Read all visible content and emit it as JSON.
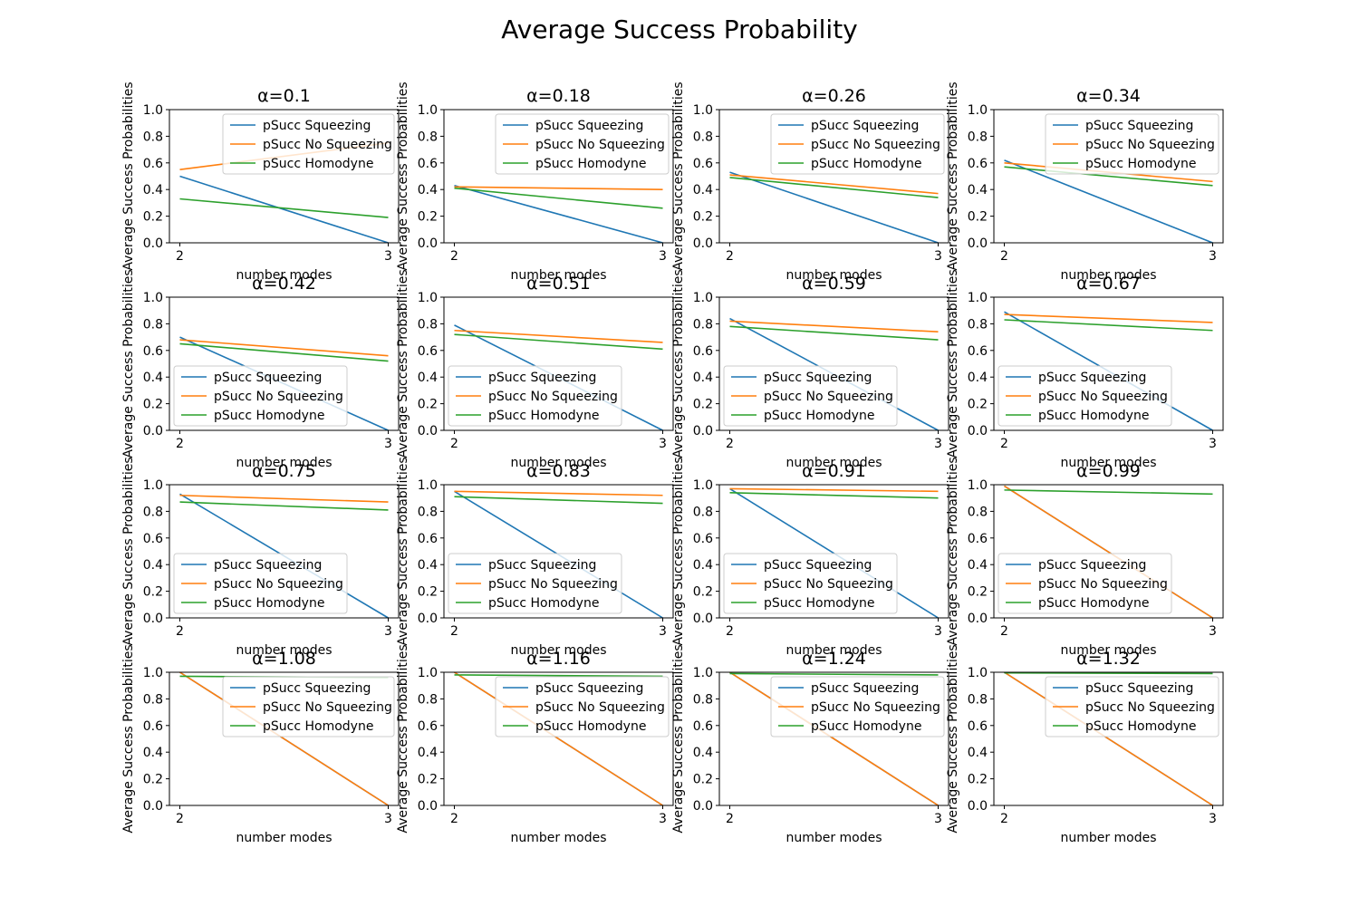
{
  "figure": {
    "title": "Average Success Probability"
  },
  "chart_data": {
    "type": "line",
    "layout": "4x4 grid of subplots",
    "title": "Average Success Probability",
    "xlabel": "number modes",
    "ylabel": "Average Success Probabilities",
    "x": [
      2,
      3
    ],
    "x_ticks": [
      "2",
      "3"
    ],
    "ylim": [
      0,
      1
    ],
    "y_ticks": [
      "0.0",
      "0.2",
      "0.4",
      "0.6",
      "0.8",
      "1.0"
    ],
    "series_styles": [
      {
        "name": "pSucc Squeezing",
        "color": "#1f77b4"
      },
      {
        "name": "pSucc No Squeezing",
        "color": "#ff7f0e"
      },
      {
        "name": "pSucc Homodyne",
        "color": "#2ca02c"
      }
    ],
    "subplots": [
      {
        "title": "α=0.1",
        "legend": "upper-right",
        "series": [
          {
            "name": "pSucc Squeezing",
            "values": [
              0.5,
              0.0
            ]
          },
          {
            "name": "pSucc No Squeezing",
            "values": [
              0.55,
              0.75
            ]
          },
          {
            "name": "pSucc Homodyne",
            "values": [
              0.33,
              0.19
            ]
          }
        ]
      },
      {
        "title": "α=0.18",
        "legend": "upper-right",
        "series": [
          {
            "name": "pSucc Squeezing",
            "values": [
              0.43,
              0.0
            ]
          },
          {
            "name": "pSucc No Squeezing",
            "values": [
              0.42,
              0.4
            ]
          },
          {
            "name": "pSucc Homodyne",
            "values": [
              0.41,
              0.26
            ]
          }
        ]
      },
      {
        "title": "α=0.26",
        "legend": "upper-right",
        "series": [
          {
            "name": "pSucc Squeezing",
            "values": [
              0.53,
              0.0
            ]
          },
          {
            "name": "pSucc No Squeezing",
            "values": [
              0.51,
              0.37
            ]
          },
          {
            "name": "pSucc Homodyne",
            "values": [
              0.49,
              0.34
            ]
          }
        ]
      },
      {
        "title": "α=0.34",
        "legend": "upper-right",
        "series": [
          {
            "name": "pSucc Squeezing",
            "values": [
              0.62,
              0.0
            ]
          },
          {
            "name": "pSucc No Squeezing",
            "values": [
              0.6,
              0.46
            ]
          },
          {
            "name": "pSucc Homodyne",
            "values": [
              0.57,
              0.43
            ]
          }
        ]
      },
      {
        "title": "α=0.42",
        "legend": "lower-left",
        "series": [
          {
            "name": "pSucc Squeezing",
            "values": [
              0.7,
              0.0
            ]
          },
          {
            "name": "pSucc No Squeezing",
            "values": [
              0.68,
              0.56
            ]
          },
          {
            "name": "pSucc Homodyne",
            "values": [
              0.65,
              0.52
            ]
          }
        ]
      },
      {
        "title": "α=0.51",
        "legend": "lower-left",
        "series": [
          {
            "name": "pSucc Squeezing",
            "values": [
              0.79,
              0.0
            ]
          },
          {
            "name": "pSucc No Squeezing",
            "values": [
              0.75,
              0.66
            ]
          },
          {
            "name": "pSucc Homodyne",
            "values": [
              0.72,
              0.61
            ]
          }
        ]
      },
      {
        "title": "α=0.59",
        "legend": "lower-left",
        "series": [
          {
            "name": "pSucc Squeezing",
            "values": [
              0.84,
              0.0
            ]
          },
          {
            "name": "pSucc No Squeezing",
            "values": [
              0.82,
              0.74
            ]
          },
          {
            "name": "pSucc Homodyne",
            "values": [
              0.78,
              0.68
            ]
          }
        ]
      },
      {
        "title": "α=0.67",
        "legend": "lower-left",
        "series": [
          {
            "name": "pSucc Squeezing",
            "values": [
              0.89,
              0.0
            ]
          },
          {
            "name": "pSucc No Squeezing",
            "values": [
              0.87,
              0.81
            ]
          },
          {
            "name": "pSucc Homodyne",
            "values": [
              0.83,
              0.75
            ]
          }
        ]
      },
      {
        "title": "α=0.75",
        "legend": "lower-left",
        "series": [
          {
            "name": "pSucc Squeezing",
            "values": [
              0.93,
              0.0
            ]
          },
          {
            "name": "pSucc No Squeezing",
            "values": [
              0.92,
              0.87
            ]
          },
          {
            "name": "pSucc Homodyne",
            "values": [
              0.87,
              0.81
            ]
          }
        ]
      },
      {
        "title": "α=0.83",
        "legend": "lower-left",
        "series": [
          {
            "name": "pSucc Squeezing",
            "values": [
              0.95,
              0.0
            ]
          },
          {
            "name": "pSucc No Squeezing",
            "values": [
              0.95,
              0.92
            ]
          },
          {
            "name": "pSucc Homodyne",
            "values": [
              0.91,
              0.86
            ]
          }
        ]
      },
      {
        "title": "α=0.91",
        "legend": "lower-left",
        "series": [
          {
            "name": "pSucc Squeezing",
            "values": [
              0.97,
              0.0
            ]
          },
          {
            "name": "pSucc No Squeezing",
            "values": [
              0.97,
              0.95
            ]
          },
          {
            "name": "pSucc Homodyne",
            "values": [
              0.94,
              0.9
            ]
          }
        ]
      },
      {
        "title": "α=0.99",
        "legend": "lower-left",
        "series": [
          {
            "name": "pSucc Squeezing",
            "values": [
              0.99,
              0.0
            ]
          },
          {
            "name": "pSucc No Squeezing",
            "values": [
              0.99,
              0.0
            ]
          },
          {
            "name": "pSucc Homodyne",
            "values": [
              0.96,
              0.93
            ]
          }
        ]
      },
      {
        "title": "α=1.08",
        "legend": "upper-right",
        "series": [
          {
            "name": "pSucc Squeezing",
            "values": [
              1.0,
              0.0
            ]
          },
          {
            "name": "pSucc No Squeezing",
            "values": [
              1.0,
              0.0
            ]
          },
          {
            "name": "pSucc Homodyne",
            "values": [
              0.97,
              0.96
            ]
          }
        ]
      },
      {
        "title": "α=1.16",
        "legend": "upper-right",
        "series": [
          {
            "name": "pSucc Squeezing",
            "values": [
              1.0,
              0.0
            ]
          },
          {
            "name": "pSucc No Squeezing",
            "values": [
              1.0,
              0.0
            ]
          },
          {
            "name": "pSucc Homodyne",
            "values": [
              0.98,
              0.97
            ]
          }
        ]
      },
      {
        "title": "α=1.24",
        "legend": "upper-right",
        "series": [
          {
            "name": "pSucc Squeezing",
            "values": [
              1.0,
              0.0
            ]
          },
          {
            "name": "pSucc No Squeezing",
            "values": [
              1.0,
              0.0
            ]
          },
          {
            "name": "pSucc Homodyne",
            "values": [
              0.99,
              0.98
            ]
          }
        ]
      },
      {
        "title": "α=1.32",
        "legend": "upper-right",
        "series": [
          {
            "name": "pSucc Squeezing",
            "values": [
              1.0,
              0.0
            ]
          },
          {
            "name": "pSucc No Squeezing",
            "values": [
              1.0,
              0.0
            ]
          },
          {
            "name": "pSucc Homodyne",
            "values": [
              0.995,
              0.99
            ]
          }
        ]
      }
    ]
  }
}
